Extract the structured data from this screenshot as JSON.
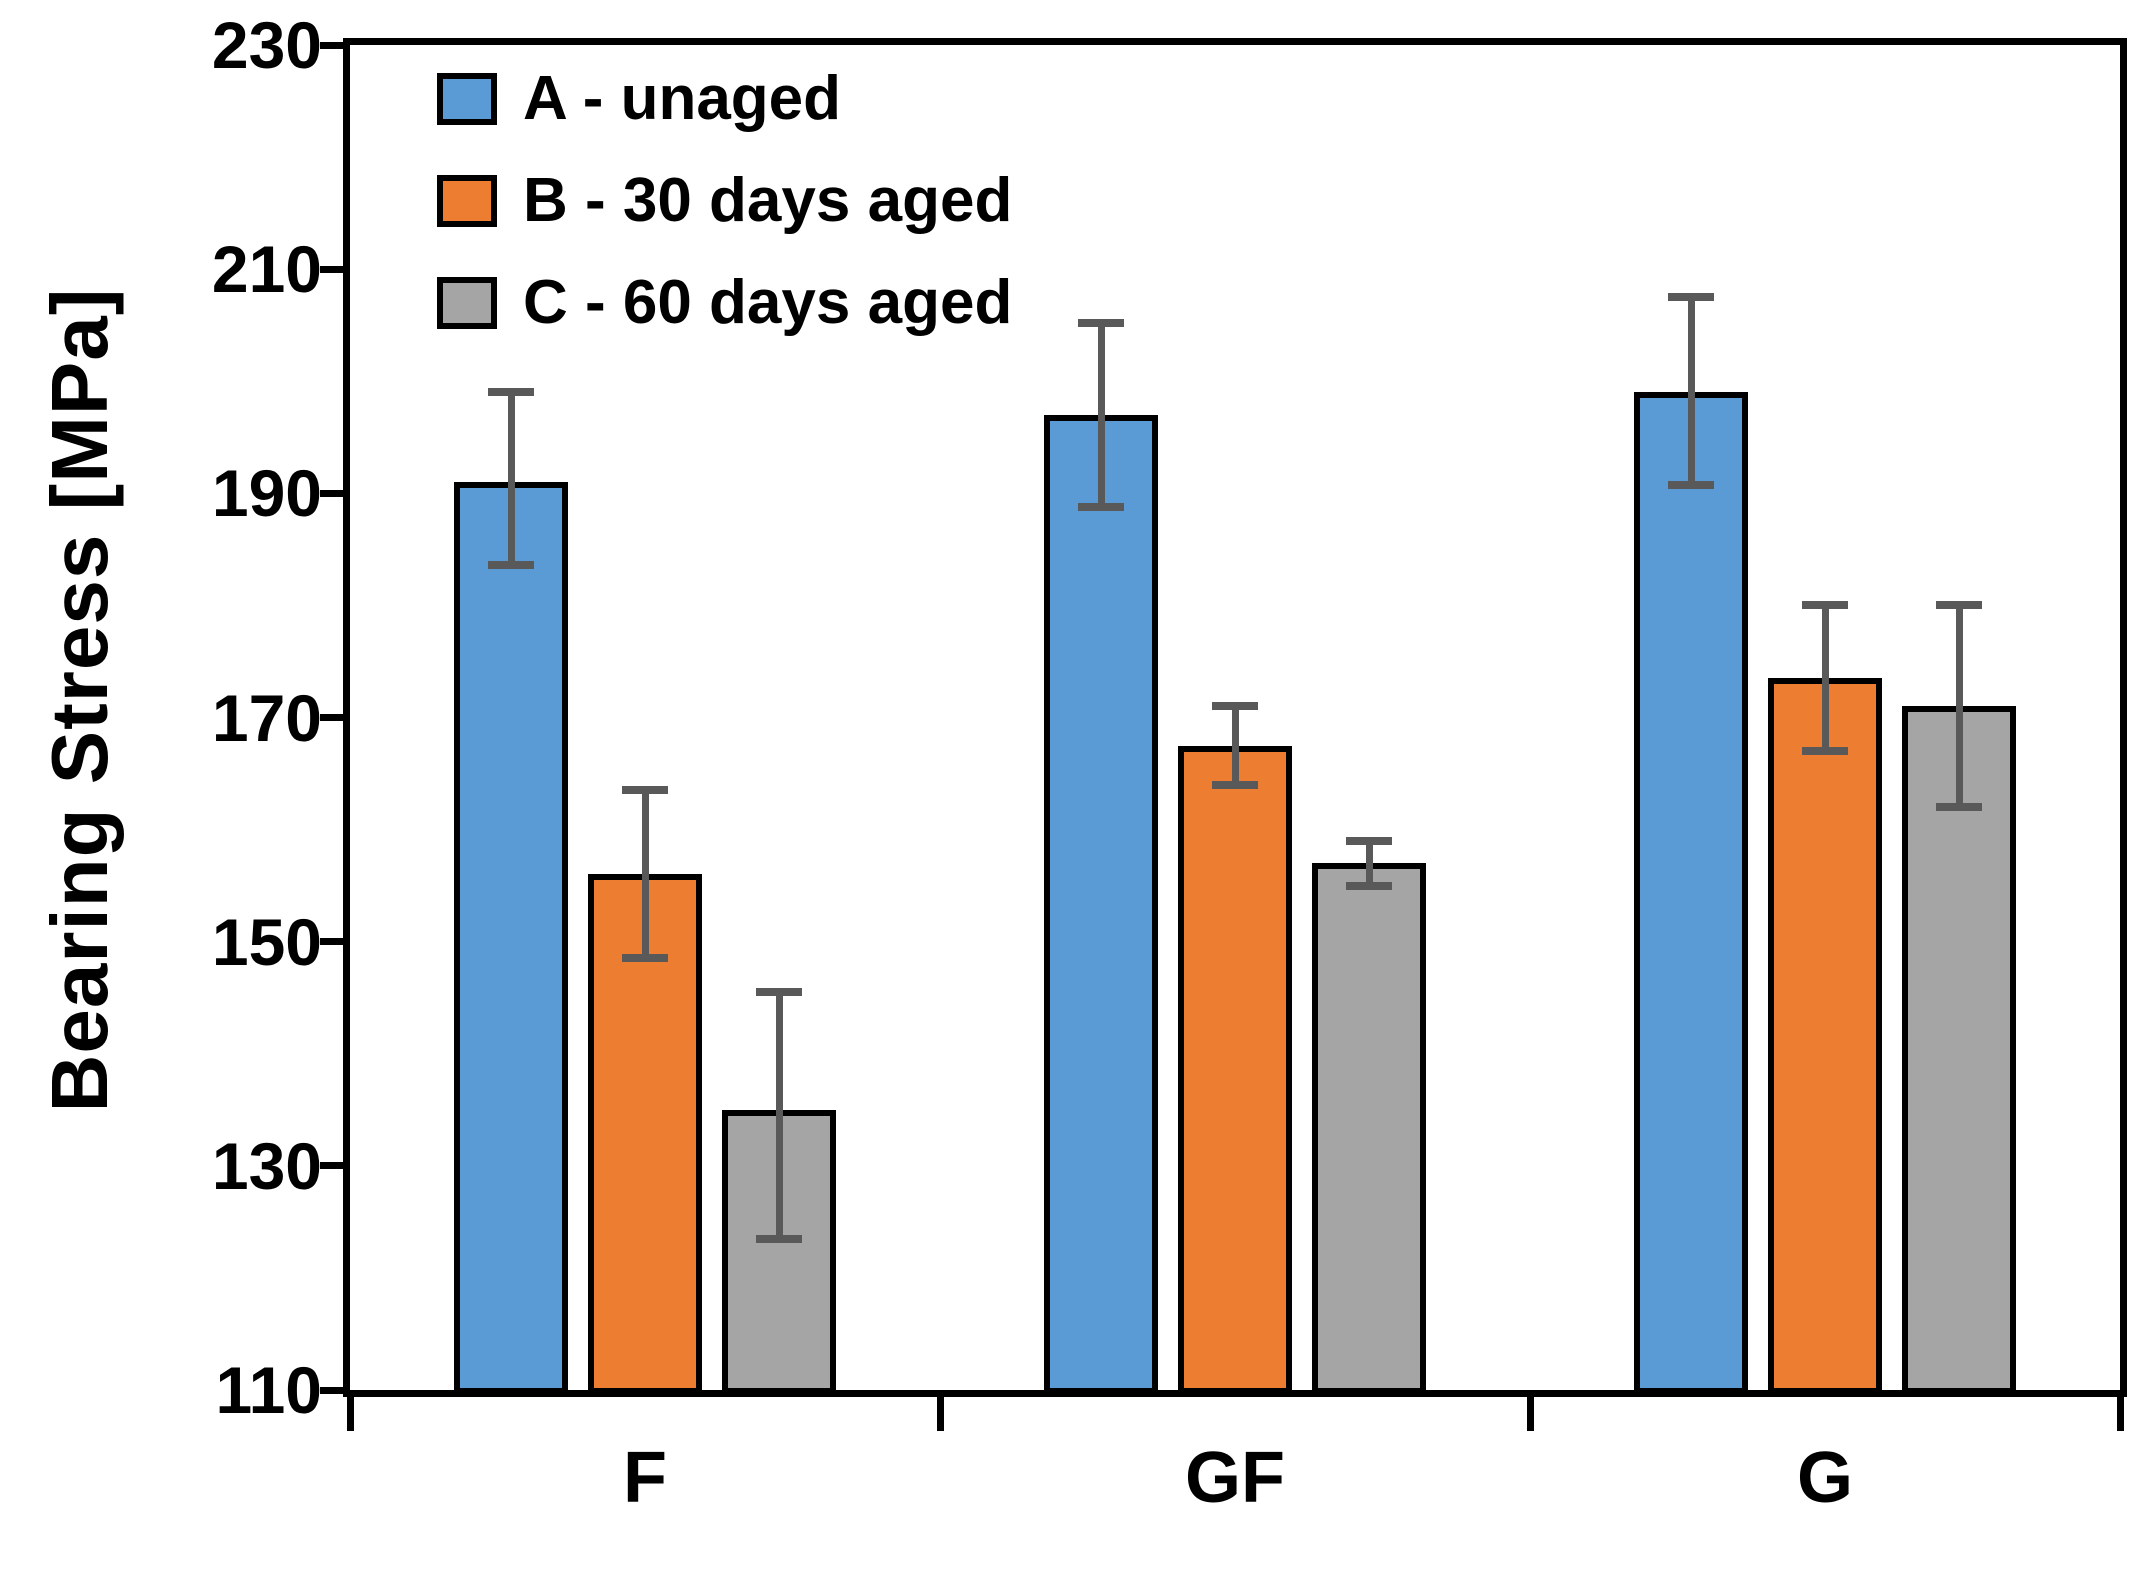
{
  "chart_data": {
    "type": "bar",
    "title": "",
    "ylabel": "Bearing Stress [MPa]",
    "xlabel": "",
    "ylim": [
      110,
      230
    ],
    "ytick_step": 20,
    "yticks": [
      230,
      210,
      190,
      170,
      150,
      130,
      110
    ],
    "categories": [
      "F",
      "GF",
      "G"
    ],
    "series": [
      {
        "name": "A - unaged",
        "color": "#5B9BD5",
        "values": [
          191,
          197,
          199
        ],
        "err_up": [
          8,
          8.2,
          8.5
        ],
        "err_down": [
          7.4,
          8.2,
          8.3
        ]
      },
      {
        "name": "B - 30 days aged",
        "color": "#ED7D31",
        "values": [
          156,
          167.5,
          173.5
        ],
        "err_up": [
          7.5,
          3.5,
          6.5
        ],
        "err_down": [
          7.5,
          3.5,
          6.5
        ]
      },
      {
        "name": "C - 60 days aged",
        "color": "#A5A5A5",
        "values": [
          135,
          157,
          171
        ],
        "err_up": [
          10.5,
          2,
          9
        ],
        "err_down": [
          11.5,
          2,
          9
        ]
      }
    ],
    "error_bar_color": "#595959",
    "axis_color": "#000000",
    "grid": false,
    "legend_position": "top-left-inside"
  }
}
